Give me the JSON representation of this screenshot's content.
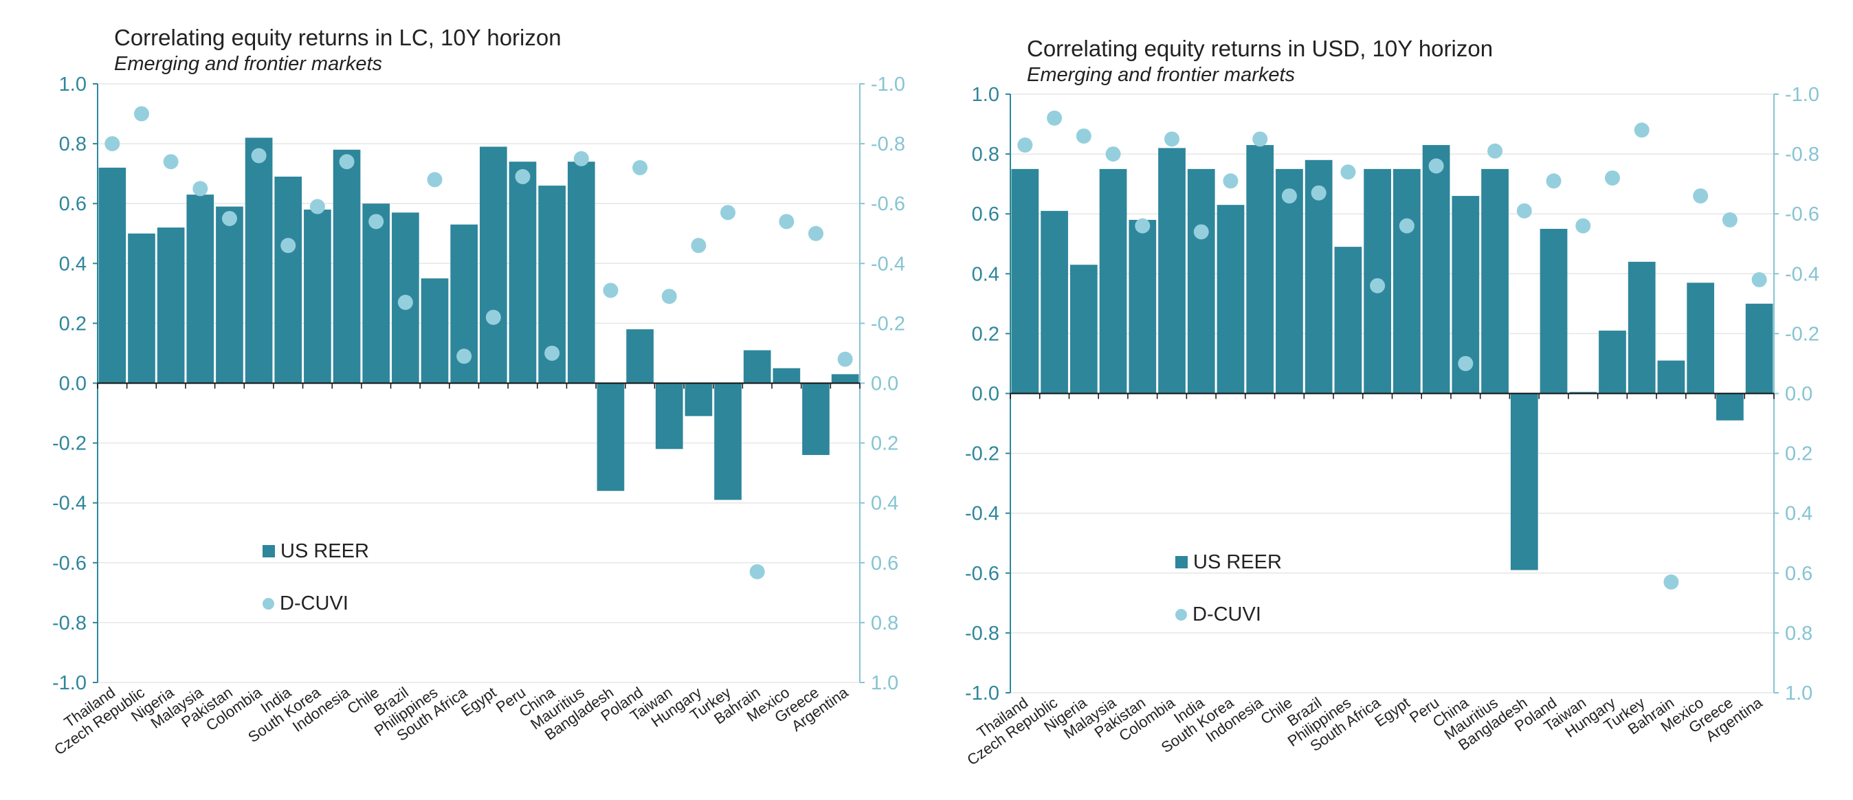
{
  "colors": {
    "bar": "#2e869b",
    "dot": "#95cfdd",
    "left_axis": "#2e869b",
    "right_axis": "#86c4d3",
    "grid": "#e6e6e6",
    "text": "#222222"
  },
  "legend": {
    "bar_label": "US REER",
    "dot_label": "D-CUVI"
  },
  "chart_data": [
    {
      "type": "bar",
      "title": "Correlating equity returns in LC, 10Y horizon",
      "subtitle": "Emerging and frontier markets",
      "categories": [
        "Thailand",
        "Czech Republic",
        "Nigeria",
        "Malaysia",
        "Pakistan",
        "Colombia",
        "India",
        "South Korea",
        "Indonesia",
        "Chile",
        "Brazil",
        "Philippines",
        "South Africa",
        "Egypt",
        "Peru",
        "China",
        "Mauritius",
        "Bangladesh",
        "Poland",
        "Taiwan",
        "Hungary",
        "Turkey",
        "Bahrain",
        "Mexico",
        "Greece",
        "Argentina"
      ],
      "left_ticks": [
        "1.0",
        "0.8",
        "0.6",
        "0.4",
        "0.2",
        "0.0",
        "-0.2",
        "-0.4",
        "-0.6",
        "-0.8",
        "-1.0"
      ],
      "right_ticks": [
        "-1.0",
        "-0.8",
        "-0.6",
        "-0.4",
        "-0.2",
        "0.0",
        "0.2",
        "0.4",
        "0.6",
        "0.8",
        "1.0"
      ],
      "ylim": [
        -1.0,
        1.0
      ],
      "y2lim_inverted": [
        -1.0,
        1.0
      ],
      "series": [
        {
          "name": "US REER",
          "kind": "bar",
          "axis": "left",
          "values": [
            0.72,
            0.5,
            0.52,
            0.63,
            0.59,
            0.82,
            0.69,
            0.58,
            0.78,
            0.6,
            0.57,
            0.35,
            0.53,
            0.79,
            0.74,
            0.66,
            0.74,
            -0.36,
            0.18,
            -0.22,
            -0.11,
            -0.39,
            0.11,
            0.05,
            -0.24,
            0.03
          ]
        },
        {
          "name": "D-CUVI",
          "kind": "dot",
          "axis": "right_inverted",
          "values": [
            -0.8,
            -0.9,
            -0.74,
            -0.65,
            -0.55,
            -0.76,
            -0.46,
            -0.59,
            -0.74,
            -0.54,
            -0.27,
            -0.68,
            -0.09,
            -0.22,
            -0.69,
            -0.1,
            -0.75,
            -0.31,
            -0.72,
            -0.29,
            -0.46,
            -0.57,
            0.63,
            -0.54,
            -0.5,
            -0.08
          ]
        }
      ]
    },
    {
      "type": "bar",
      "title": "Correlating equity returns in USD, 10Y horizon",
      "subtitle": "Emerging and frontier markets",
      "categories": [
        "Thailand",
        "Czech Republic",
        "Nigeria",
        "Malaysia",
        "Pakistan",
        "Colombia",
        "India",
        "South Korea",
        "Indonesia",
        "Chile",
        "Brazil",
        "Philippines",
        "South Africa",
        "Egypt",
        "Peru",
        "China",
        "Mauritius",
        "Bangladesh",
        "Poland",
        "Taiwan",
        "Hungary",
        "Turkey",
        "Bahrain",
        "Mexico",
        "Greece",
        "Argentina"
      ],
      "left_ticks": [
        "1.0",
        "0.8",
        "0.6",
        "0.4",
        "0.2",
        "0.0",
        "-0.2",
        "-0.4",
        "-0.6",
        "-0.8",
        "-1.0"
      ],
      "right_ticks": [
        "-1.0",
        "-0.8",
        "-0.6",
        "-0.4",
        "-0.2",
        "0.0",
        "0.2",
        "0.4",
        "0.6",
        "0.8",
        "1.0"
      ],
      "ylim": [
        -1.0,
        1.0
      ],
      "y2lim_inverted": [
        -1.0,
        1.0
      ],
      "series": [
        {
          "name": "US REER",
          "kind": "bar",
          "axis": "left",
          "values": [
            0.75,
            0.61,
            0.43,
            0.75,
            0.58,
            0.82,
            0.75,
            0.63,
            0.83,
            0.75,
            0.78,
            0.49,
            0.75,
            0.75,
            0.83,
            0.66,
            0.75,
            -0.59,
            0.55,
            0.005,
            0.21,
            0.44,
            0.11,
            0.37,
            -0.09,
            0.3
          ]
        },
        {
          "name": "D-CUVI",
          "kind": "dot",
          "axis": "right_inverted",
          "values": [
            -0.83,
            -0.92,
            -0.86,
            -0.8,
            -0.56,
            -0.85,
            -0.54,
            -0.71,
            -0.85,
            -0.66,
            -0.67,
            -0.74,
            -0.36,
            -0.56,
            -0.76,
            -0.1,
            -0.81,
            -0.61,
            -0.71,
            -0.56,
            -0.72,
            -0.88,
            0.63,
            -0.66,
            -0.58,
            -0.38
          ]
        }
      ]
    }
  ]
}
